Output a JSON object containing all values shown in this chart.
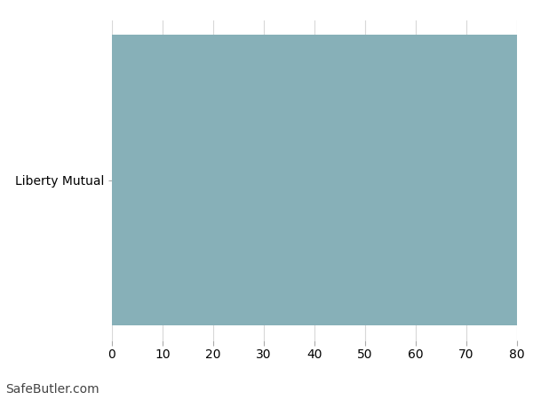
{
  "categories": [
    "Liberty Mutual"
  ],
  "values": [
    80
  ],
  "bar_color": "#87b0b8",
  "xlim": [
    0,
    80
  ],
  "xticks": [
    0,
    10,
    20,
    30,
    40,
    50,
    60,
    70,
    80
  ],
  "background_color": "#ffffff",
  "grid_color": "#d8d8d8",
  "watermark": "SafeButler.com",
  "watermark_fontsize": 10,
  "tick_fontsize": 10,
  "label_fontsize": 10,
  "bar_height": 0.92
}
